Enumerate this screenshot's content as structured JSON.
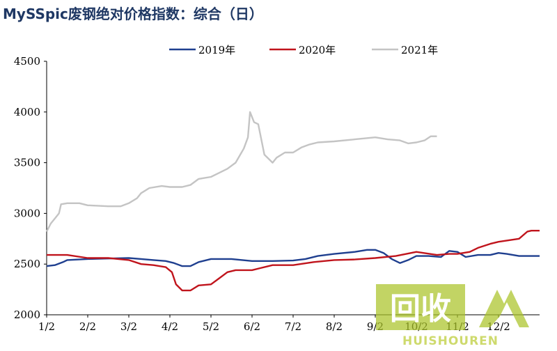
{
  "title": "MySSpic废钢绝对价格指数：综合（日）",
  "watermark": {
    "glyphs": "回收",
    "text": "HUISHOUREN"
  },
  "chart_data": {
    "type": "line",
    "ylim": [
      2000,
      4500
    ],
    "yticks": [
      2000,
      2500,
      3000,
      3500,
      4000,
      4500
    ],
    "xlabels": [
      "1/2",
      "2/2",
      "3/2",
      "4/2",
      "5/2",
      "6/2",
      "7/2",
      "8/2",
      "9/2",
      "10/2",
      "11/2",
      "12/2"
    ],
    "legend_position": "top",
    "grid": false,
    "series": [
      {
        "name": "2019年",
        "color": "#1f3f8f",
        "points": [
          [
            0,
            2480
          ],
          [
            0.2,
            2490
          ],
          [
            0.4,
            2520
          ],
          [
            0.5,
            2540
          ],
          [
            1,
            2550
          ],
          [
            1.5,
            2555
          ],
          [
            2,
            2560
          ],
          [
            2.3,
            2550
          ],
          [
            2.6,
            2540
          ],
          [
            2.9,
            2530
          ],
          [
            3.1,
            2510
          ],
          [
            3.3,
            2480
          ],
          [
            3.5,
            2480
          ],
          [
            3.7,
            2520
          ],
          [
            4,
            2550
          ],
          [
            4.5,
            2550
          ],
          [
            5,
            2530
          ],
          [
            5.5,
            2530
          ],
          [
            6,
            2535
          ],
          [
            6.3,
            2550
          ],
          [
            6.6,
            2580
          ],
          [
            7,
            2600
          ],
          [
            7.5,
            2620
          ],
          [
            7.8,
            2640
          ],
          [
            8,
            2640
          ],
          [
            8.2,
            2610
          ],
          [
            8.4,
            2550
          ],
          [
            8.6,
            2510
          ],
          [
            8.8,
            2540
          ],
          [
            9,
            2580
          ],
          [
            9.3,
            2580
          ],
          [
            9.6,
            2570
          ],
          [
            9.8,
            2630
          ],
          [
            10,
            2620
          ],
          [
            10.2,
            2570
          ],
          [
            10.5,
            2590
          ],
          [
            10.8,
            2590
          ],
          [
            11,
            2610
          ],
          [
            11.2,
            2600
          ],
          [
            11.5,
            2580
          ],
          [
            12,
            2580
          ]
        ]
      },
      {
        "name": "2020年",
        "color": "#c0141c",
        "points": [
          [
            0,
            2590
          ],
          [
            0.5,
            2590
          ],
          [
            1,
            2560
          ],
          [
            1.5,
            2560
          ],
          [
            2,
            2540
          ],
          [
            2.3,
            2500
          ],
          [
            2.6,
            2490
          ],
          [
            2.9,
            2470
          ],
          [
            3.05,
            2420
          ],
          [
            3.15,
            2300
          ],
          [
            3.3,
            2240
          ],
          [
            3.5,
            2240
          ],
          [
            3.7,
            2290
          ],
          [
            4,
            2300
          ],
          [
            4.2,
            2360
          ],
          [
            4.4,
            2420
          ],
          [
            4.6,
            2440
          ],
          [
            5,
            2440
          ],
          [
            5.2,
            2460
          ],
          [
            5.5,
            2490
          ],
          [
            6,
            2490
          ],
          [
            6.5,
            2520
          ],
          [
            7,
            2540
          ],
          [
            7.5,
            2545
          ],
          [
            8,
            2560
          ],
          [
            8.5,
            2580
          ],
          [
            9,
            2620
          ],
          [
            9.5,
            2590
          ],
          [
            9.8,
            2600
          ],
          [
            10,
            2600
          ],
          [
            10.3,
            2620
          ],
          [
            10.5,
            2660
          ],
          [
            10.8,
            2700
          ],
          [
            11,
            2720
          ],
          [
            11.5,
            2750
          ],
          [
            11.7,
            2820
          ],
          [
            11.8,
            2830
          ],
          [
            12,
            2830
          ]
        ]
      },
      {
        "name": "2021年",
        "color": "#c4c4c4",
        "points": [
          [
            0,
            2820
          ],
          [
            0.1,
            2900
          ],
          [
            0.2,
            2950
          ],
          [
            0.3,
            3000
          ],
          [
            0.35,
            3090
          ],
          [
            0.5,
            3100
          ],
          [
            0.8,
            3100
          ],
          [
            1,
            3080
          ],
          [
            1.5,
            3070
          ],
          [
            1.8,
            3070
          ],
          [
            2,
            3100
          ],
          [
            2.2,
            3150
          ],
          [
            2.3,
            3200
          ],
          [
            2.5,
            3250
          ],
          [
            2.8,
            3270
          ],
          [
            3,
            3260
          ],
          [
            3.3,
            3260
          ],
          [
            3.5,
            3280
          ],
          [
            3.7,
            3340
          ],
          [
            4,
            3360
          ],
          [
            4.2,
            3400
          ],
          [
            4.4,
            3440
          ],
          [
            4.6,
            3500
          ],
          [
            4.8,
            3640
          ],
          [
            4.9,
            3750
          ],
          [
            4.95,
            4000
          ],
          [
            5.05,
            3900
          ],
          [
            5.15,
            3880
          ],
          [
            5.3,
            3580
          ],
          [
            5.5,
            3500
          ],
          [
            5.6,
            3550
          ],
          [
            5.8,
            3600
          ],
          [
            6,
            3600
          ],
          [
            6.2,
            3650
          ],
          [
            6.4,
            3680
          ],
          [
            6.6,
            3700
          ],
          [
            7,
            3710
          ],
          [
            7.5,
            3730
          ],
          [
            8,
            3750
          ],
          [
            8.3,
            3730
          ],
          [
            8.6,
            3720
          ],
          [
            8.8,
            3690
          ],
          [
            9,
            3700
          ],
          [
            9.2,
            3720
          ],
          [
            9.35,
            3760
          ],
          [
            9.5,
            3760
          ]
        ]
      }
    ]
  }
}
